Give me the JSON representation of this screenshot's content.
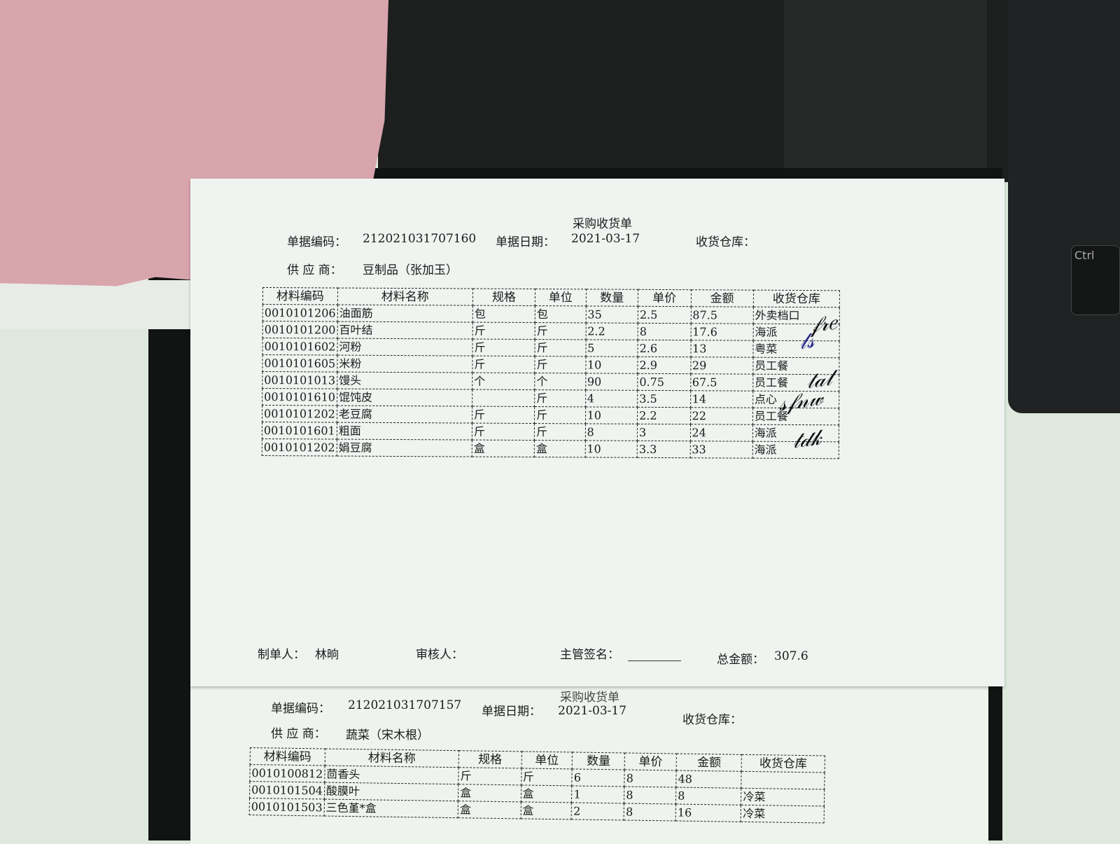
{
  "keyboard": {
    "key_label": "Ctrl"
  },
  "main_doc": {
    "title": "采购收货单",
    "doc_no_label": "单据编码：",
    "doc_no": "212021031707160",
    "date_label": "单据日期：",
    "date": "2021-03-17",
    "warehouse_label": "收货仓库：",
    "supplier_label": "供 应 商：",
    "supplier": "豆制品（张加玉）",
    "columns": [
      "材料编码",
      "材料名称",
      "规格",
      "单位",
      "数量",
      "单价",
      "金额",
      "收货仓库"
    ],
    "rows": [
      [
        "0010101206",
        "油面筋",
        "包",
        "包",
        "35",
        "2.5",
        "87.5",
        "外卖档口"
      ],
      [
        "0010101200",
        "百叶结",
        "斤",
        "斤",
        "2.2",
        "8",
        "17.6",
        "海派"
      ],
      [
        "0010101602",
        "河粉",
        "斤",
        "斤",
        "5",
        "2.6",
        "13",
        "粤菜"
      ],
      [
        "0010101605",
        "米粉",
        "斤",
        "斤",
        "10",
        "2.9",
        "29",
        "员工餐"
      ],
      [
        "0010101013",
        "馒头",
        "个",
        "个",
        "90",
        "0.75",
        "67.5",
        "员工餐"
      ],
      [
        "0010101610",
        "馄饨皮",
        "",
        "斤",
        "4",
        "3.5",
        "14",
        "点心"
      ],
      [
        "0010101202",
        "老豆腐",
        "斤",
        "斤",
        "10",
        "2.2",
        "22",
        "员工餐"
      ],
      [
        "0010101601",
        "粗面",
        "斤",
        "斤",
        "8",
        "3",
        "24",
        "海派"
      ],
      [
        "0010101202",
        "娟豆腐",
        "盒",
        "盒",
        "10",
        "3.3",
        "33",
        "海派"
      ]
    ],
    "maker_label": "制单人：",
    "maker": "林晌",
    "reviewer_label": "审核人：",
    "supervisor_label": "主管签名：",
    "total_label": "总金额：",
    "total": "307.6",
    "signatures": [
      "handwritten signature",
      "handwritten signature",
      "handwritten signature",
      "handwritten signature",
      "handwritten signature"
    ]
  },
  "second_doc": {
    "title": "采购收货单",
    "doc_no_label": "单据编码：",
    "doc_no": "212021031707157",
    "date_label": "单据日期：",
    "date": "2021-03-17",
    "warehouse_label": "收货仓库：",
    "supplier_label": "供 应 商：",
    "supplier": "蔬菜（宋木根）",
    "columns": [
      "材料编码",
      "材料名称",
      "规格",
      "单位",
      "数量",
      "单价",
      "金额",
      "收货仓库"
    ],
    "rows": [
      [
        "0010100812",
        "茴香头",
        "斤",
        "斤",
        "6",
        "8",
        "48",
        ""
      ],
      [
        "0010101504",
        "酸膜叶",
        "盒",
        "盒",
        "1",
        "8",
        "8",
        "冷菜"
      ],
      [
        "0010101503",
        "三色堇*盒",
        "盒",
        "盒",
        "2",
        "8",
        "16",
        "冷菜"
      ]
    ]
  }
}
